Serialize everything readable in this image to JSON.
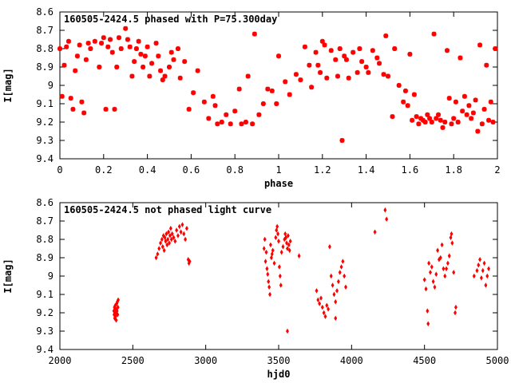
{
  "chart_data": [
    {
      "type": "scatter",
      "title": "160505-2424.5 phased with P=75.300day",
      "xlabel": "phase",
      "ylabel": "I[mag]",
      "xlim": [
        0,
        2
      ],
      "ylim": [
        9.4,
        8.6
      ],
      "y_inverted": true,
      "grid": false,
      "marker_color": "#ff0000",
      "x_ticks": [
        0,
        0.2,
        0.4,
        0.6,
        0.8,
        1,
        1.2,
        1.4,
        1.6,
        1.8,
        2
      ],
      "x_tick_labels": [
        "0",
        "0.2",
        "0.4",
        "0.6",
        "0.8",
        "1",
        "1.2",
        "1.4",
        "1.6",
        "1.8",
        "2"
      ],
      "y_ticks": [
        8.6,
        8.7,
        8.8,
        8.9,
        9,
        9.1,
        9.2,
        9.3,
        9.4
      ],
      "y_tick_labels": [
        "8.6",
        "8.7",
        "8.8",
        "8.9",
        "9",
        "9.1",
        "9.2",
        "9.3",
        "9.4"
      ],
      "points": [
        [
          0.0,
          8.8
        ],
        [
          0.01,
          9.06
        ],
        [
          0.02,
          8.89
        ],
        [
          0.03,
          8.79
        ],
        [
          0.04,
          8.76
        ],
        [
          0.05,
          9.07
        ],
        [
          0.06,
          9.13
        ],
        [
          0.07,
          8.92
        ],
        [
          0.08,
          8.84
        ],
        [
          0.09,
          8.78
        ],
        [
          0.1,
          9.09
        ],
        [
          0.11,
          9.15
        ],
        [
          0.12,
          8.86
        ],
        [
          0.13,
          8.77
        ],
        [
          0.14,
          8.8
        ],
        [
          0.16,
          8.76
        ],
        [
          0.18,
          8.9
        ],
        [
          0.19,
          8.77
        ],
        [
          0.2,
          8.74
        ],
        [
          0.21,
          9.13
        ],
        [
          0.22,
          8.79
        ],
        [
          0.23,
          8.75
        ],
        [
          0.24,
          8.82
        ],
        [
          0.25,
          9.13
        ],
        [
          0.26,
          8.9
        ],
        [
          0.27,
          8.74
        ],
        [
          0.28,
          8.8
        ],
        [
          0.3,
          8.69
        ],
        [
          0.31,
          8.75
        ],
        [
          0.32,
          8.79
        ],
        [
          0.33,
          8.95
        ],
        [
          0.34,
          8.87
        ],
        [
          0.35,
          8.8
        ],
        [
          0.36,
          8.76
        ],
        [
          0.37,
          8.83
        ],
        [
          0.38,
          8.9
        ],
        [
          0.39,
          8.84
        ],
        [
          0.4,
          8.79
        ],
        [
          0.41,
          8.95
        ],
        [
          0.42,
          8.88
        ],
        [
          0.44,
          8.77
        ],
        [
          0.45,
          8.84
        ],
        [
          0.46,
          8.92
        ],
        [
          0.47,
          8.97
        ],
        [
          0.48,
          8.95
        ],
        [
          0.5,
          8.9
        ],
        [
          0.51,
          8.82
        ],
        [
          0.52,
          8.86
        ],
        [
          0.54,
          8.8
        ],
        [
          0.55,
          8.96
        ],
        [
          0.57,
          8.87
        ],
        [
          0.59,
          9.13
        ],
        [
          0.61,
          9.04
        ],
        [
          0.63,
          8.92
        ],
        [
          0.66,
          9.09
        ],
        [
          0.68,
          9.18
        ],
        [
          0.7,
          9.06
        ],
        [
          0.71,
          9.11
        ],
        [
          0.72,
          9.21
        ],
        [
          0.74,
          9.2
        ],
        [
          0.76,
          9.16
        ],
        [
          0.78,
          9.21
        ],
        [
          0.8,
          9.14
        ],
        [
          0.82,
          9.02
        ],
        [
          0.83,
          9.21
        ],
        [
          0.85,
          9.2
        ],
        [
          0.86,
          8.95
        ],
        [
          0.88,
          9.21
        ],
        [
          0.89,
          8.72
        ],
        [
          0.91,
          9.16
        ],
        [
          0.93,
          9.1
        ],
        [
          0.95,
          9.02
        ],
        [
          0.97,
          9.03
        ],
        [
          0.99,
          9.1
        ],
        [
          1.0,
          8.84
        ],
        [
          1.03,
          8.98
        ],
        [
          1.05,
          9.05
        ],
        [
          1.08,
          8.94
        ],
        [
          1.1,
          8.97
        ],
        [
          1.12,
          8.79
        ],
        [
          1.14,
          8.89
        ],
        [
          1.15,
          9.01
        ],
        [
          1.17,
          8.82
        ],
        [
          1.18,
          8.89
        ],
        [
          1.19,
          8.93
        ],
        [
          1.2,
          8.76
        ],
        [
          1.21,
          8.78
        ],
        [
          1.22,
          8.96
        ],
        [
          1.24,
          8.81
        ],
        [
          1.26,
          8.86
        ],
        [
          1.27,
          8.95
        ],
        [
          1.28,
          8.8
        ],
        [
          1.29,
          9.3
        ],
        [
          1.3,
          8.84
        ],
        [
          1.31,
          8.86
        ],
        [
          1.32,
          8.96
        ],
        [
          1.34,
          8.82
        ],
        [
          1.36,
          8.93
        ],
        [
          1.37,
          8.8
        ],
        [
          1.38,
          8.87
        ],
        [
          1.4,
          8.9
        ],
        [
          1.41,
          8.93
        ],
        [
          1.43,
          8.81
        ],
        [
          1.45,
          8.85
        ],
        [
          1.46,
          8.88
        ],
        [
          1.48,
          8.94
        ],
        [
          1.49,
          8.73
        ],
        [
          1.5,
          8.95
        ],
        [
          1.52,
          9.17
        ],
        [
          1.53,
          8.8
        ],
        [
          1.55,
          9.0
        ],
        [
          1.57,
          9.09
        ],
        [
          1.58,
          9.03
        ],
        [
          1.59,
          9.11
        ],
        [
          1.6,
          8.83
        ],
        [
          1.61,
          9.19
        ],
        [
          1.62,
          9.05
        ],
        [
          1.63,
          9.17
        ],
        [
          1.64,
          9.21
        ],
        [
          1.65,
          9.18
        ],
        [
          1.66,
          9.19
        ],
        [
          1.67,
          9.2
        ],
        [
          1.68,
          9.16
        ],
        [
          1.69,
          9.18
        ],
        [
          1.7,
          9.2
        ],
        [
          1.71,
          8.72
        ],
        [
          1.72,
          9.18
        ],
        [
          1.73,
          9.16
        ],
        [
          1.74,
          9.19
        ],
        [
          1.75,
          9.23
        ],
        [
          1.76,
          9.2
        ],
        [
          1.77,
          8.81
        ],
        [
          1.78,
          9.07
        ],
        [
          1.79,
          9.21
        ],
        [
          1.8,
          9.18
        ],
        [
          1.81,
          9.09
        ],
        [
          1.82,
          9.2
        ],
        [
          1.83,
          8.85
        ],
        [
          1.84,
          9.14
        ],
        [
          1.85,
          9.06
        ],
        [
          1.86,
          9.16
        ],
        [
          1.87,
          9.11
        ],
        [
          1.88,
          9.18
        ],
        [
          1.89,
          9.15
        ],
        [
          1.9,
          9.08
        ],
        [
          1.91,
          9.25
        ],
        [
          1.92,
          8.78
        ],
        [
          1.93,
          9.21
        ],
        [
          1.94,
          9.13
        ],
        [
          1.95,
          8.89
        ],
        [
          1.96,
          9.19
        ],
        [
          1.97,
          9.09
        ],
        [
          1.98,
          9.2
        ],
        [
          1.99,
          8.8
        ]
      ]
    },
    {
      "type": "scatter",
      "title": "160505-2424.5 not phased light curve",
      "xlabel": "hjd0",
      "ylabel": "I[mag]",
      "xlim": [
        2000,
        5000
      ],
      "ylim": [
        9.4,
        8.6
      ],
      "y_inverted": true,
      "grid": false,
      "marker_color": "#ff0000",
      "x_ticks": [
        2000,
        2500,
        3000,
        3500,
        4000,
        4500,
        5000
      ],
      "x_tick_labels": [
        "2000",
        "2500",
        "3000",
        "3500",
        "4000",
        "4500",
        "5000"
      ],
      "y_ticks": [
        8.6,
        8.7,
        8.8,
        8.9,
        9,
        9.1,
        9.2,
        9.3,
        9.4
      ],
      "y_tick_labels": [
        "8.6",
        "8.7",
        "8.8",
        "8.9",
        "9",
        "9.1",
        "9.2",
        "9.3",
        "9.4"
      ],
      "points": [
        [
          2370,
          9.19
        ],
        [
          2372,
          9.21
        ],
        [
          2374,
          9.17
        ],
        [
          2376,
          9.23
        ],
        [
          2378,
          9.2
        ],
        [
          2380,
          9.16
        ],
        [
          2382,
          9.22
        ],
        [
          2384,
          9.18
        ],
        [
          2386,
          9.24
        ],
        [
          2388,
          9.2
        ],
        [
          2390,
          9.15
        ],
        [
          2392,
          9.19
        ],
        [
          2394,
          9.14
        ],
        [
          2396,
          9.21
        ],
        [
          2398,
          9.17
        ],
        [
          2400,
          9.13
        ],
        [
          2660,
          8.9
        ],
        [
          2670,
          8.88
        ],
        [
          2680,
          8.85
        ],
        [
          2690,
          8.82
        ],
        [
          2700,
          8.8
        ],
        [
          2705,
          8.84
        ],
        [
          2710,
          8.78
        ],
        [
          2715,
          8.86
        ],
        [
          2720,
          8.79
        ],
        [
          2725,
          8.81
        ],
        [
          2730,
          8.77
        ],
        [
          2735,
          8.83
        ],
        [
          2740,
          8.8
        ],
        [
          2745,
          8.76
        ],
        [
          2750,
          8.82
        ],
        [
          2755,
          8.78
        ],
        [
          2760,
          8.74
        ],
        [
          2765,
          8.8
        ],
        [
          2770,
          8.77
        ],
        [
          2780,
          8.79
        ],
        [
          2790,
          8.81
        ],
        [
          2800,
          8.75
        ],
        [
          2810,
          8.78
        ],
        [
          2820,
          8.73
        ],
        [
          2830,
          8.76
        ],
        [
          2840,
          8.72
        ],
        [
          2850,
          8.77
        ],
        [
          2860,
          8.8
        ],
        [
          2870,
          8.74
        ],
        [
          2880,
          8.91
        ],
        [
          2885,
          8.93
        ],
        [
          2890,
          8.92
        ],
        [
          3400,
          8.85
        ],
        [
          3405,
          8.8
        ],
        [
          3410,
          8.92
        ],
        [
          3415,
          8.87
        ],
        [
          3420,
          8.96
        ],
        [
          3425,
          8.99
        ],
        [
          3430,
          9.03
        ],
        [
          3435,
          9.06
        ],
        [
          3440,
          9.1
        ],
        [
          3445,
          8.83
        ],
        [
          3450,
          8.9
        ],
        [
          3455,
          8.88
        ],
        [
          3460,
          8.86
        ],
        [
          3470,
          8.93
        ],
        [
          3480,
          8.79
        ],
        [
          3485,
          8.75
        ],
        [
          3490,
          8.73
        ],
        [
          3495,
          8.77
        ],
        [
          3500,
          8.81
        ],
        [
          3505,
          8.95
        ],
        [
          3510,
          9.0
        ],
        [
          3515,
          9.05
        ],
        [
          3520,
          8.87
        ],
        [
          3530,
          8.84
        ],
        [
          3540,
          8.8
        ],
        [
          3545,
          8.77
        ],
        [
          3550,
          8.79
        ],
        [
          3555,
          8.82
        ],
        [
          3560,
          8.85
        ],
        [
          3565,
          8.78
        ],
        [
          3570,
          8.83
        ],
        [
          3575,
          8.86
        ],
        [
          3580,
          8.81
        ],
        [
          3560,
          9.3
        ],
        [
          3640,
          8.89
        ],
        [
          3760,
          9.08
        ],
        [
          3770,
          9.13
        ],
        [
          3780,
          9.15
        ],
        [
          3790,
          9.12
        ],
        [
          3800,
          9.17
        ],
        [
          3810,
          9.2
        ],
        [
          3820,
          9.22
        ],
        [
          3830,
          9.16
        ],
        [
          3840,
          9.18
        ],
        [
          3850,
          8.84
        ],
        [
          3860,
          9.0
        ],
        [
          3870,
          9.05
        ],
        [
          3880,
          9.1
        ],
        [
          3890,
          9.14
        ],
        [
          3900,
          9.08
        ],
        [
          3910,
          9.03
        ],
        [
          3920,
          8.98
        ],
        [
          3930,
          8.95
        ],
        [
          3940,
          8.92
        ],
        [
          3950,
          9.0
        ],
        [
          3960,
          9.06
        ],
        [
          3890,
          9.23
        ],
        [
          4160,
          8.76
        ],
        [
          4230,
          8.64
        ],
        [
          4240,
          8.69
        ],
        [
          4500,
          9.02
        ],
        [
          4510,
          9.07
        ],
        [
          4520,
          9.19
        ],
        [
          4525,
          9.26
        ],
        [
          4530,
          8.93
        ],
        [
          4540,
          8.98
        ],
        [
          4550,
          8.95
        ],
        [
          4560,
          9.03
        ],
        [
          4570,
          9.06
        ],
        [
          4580,
          8.99
        ],
        [
          4590,
          8.86
        ],
        [
          4600,
          8.91
        ],
        [
          4610,
          8.9
        ],
        [
          4620,
          8.83
        ],
        [
          4630,
          8.96
        ],
        [
          4640,
          9.0
        ],
        [
          4650,
          8.96
        ],
        [
          4660,
          8.93
        ],
        [
          4670,
          8.89
        ],
        [
          4680,
          8.79
        ],
        [
          4685,
          8.77
        ],
        [
          4690,
          8.82
        ],
        [
          4700,
          8.98
        ],
        [
          4710,
          9.2
        ],
        [
          4715,
          9.17
        ],
        [
          4840,
          9.0
        ],
        [
          4860,
          8.97
        ],
        [
          4870,
          8.94
        ],
        [
          4880,
          8.91
        ],
        [
          4890,
          9.01
        ],
        [
          4900,
          8.97
        ],
        [
          4910,
          8.93
        ],
        [
          4920,
          9.05
        ],
        [
          4930,
          9.0
        ],
        [
          4940,
          8.96
        ]
      ]
    }
  ]
}
